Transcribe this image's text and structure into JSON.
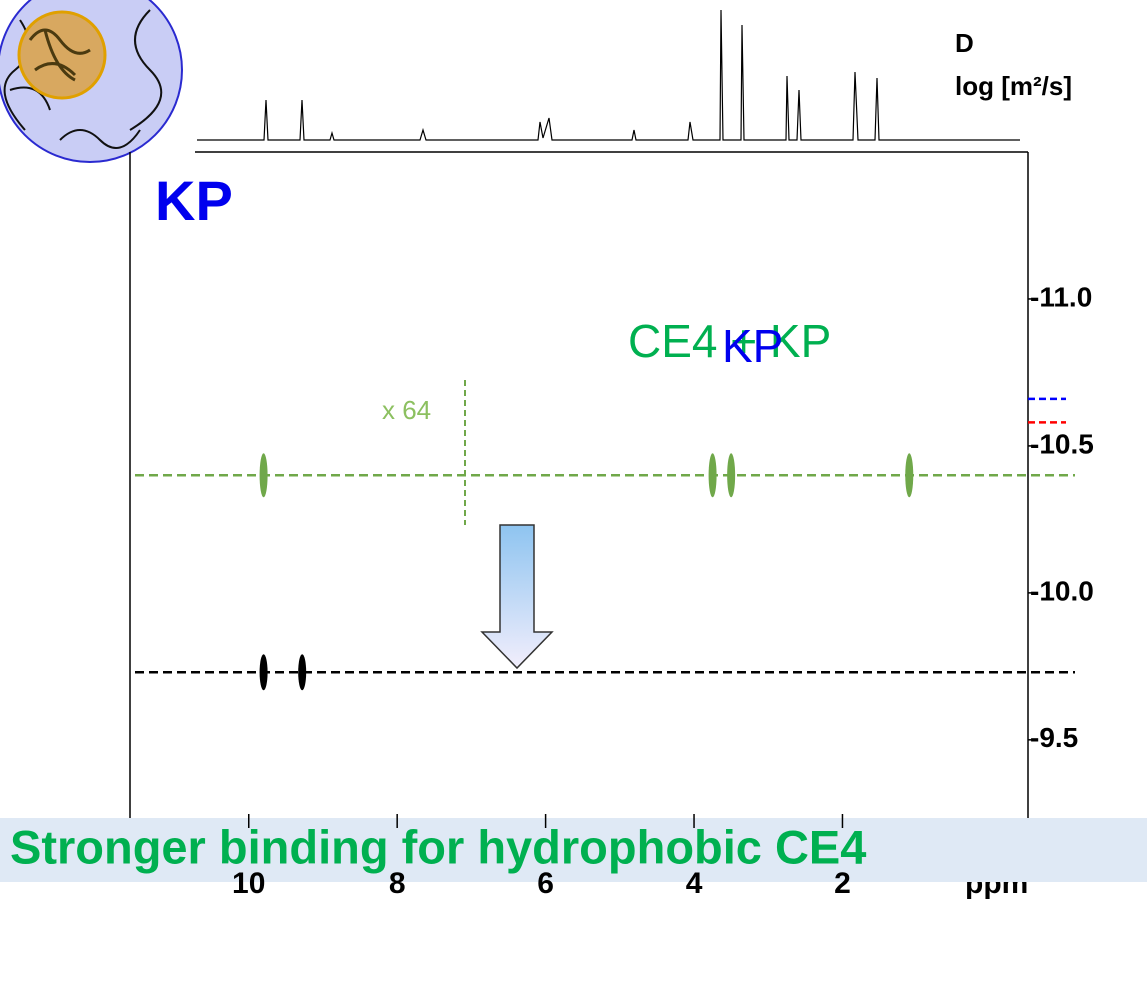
{
  "chart_data": {
    "type": "dosy",
    "title": "KP",
    "y_axis_label": "D",
    "y_axis_unit": "log [m²/s]",
    "x_axis_label": "ppm",
    "annotations": {
      "complex": "CE4 + KP",
      "overlay": "KP",
      "scale": "x 64",
      "banner": "Stronger binding for hydrophobic CE4"
    },
    "xlim": [
      11.6,
      -0.5
    ],
    "xticks": [
      10,
      8,
      6,
      4,
      2
    ],
    "ylim": [
      -9.2,
      -11.5
    ],
    "yticks": [
      {
        "value": -11.0,
        "label": "-11.0"
      },
      {
        "value": -10.5,
        "label": "-10.5"
      },
      {
        "value": -10.0,
        "label": "-10.0"
      },
      {
        "value": -9.5,
        "label": "-9.5"
      }
    ],
    "series": [
      {
        "name": "CE4 + KP",
        "color": "#70a84a",
        "D": -10.4,
        "peaks": [
          9.8,
          3.75,
          3.5,
          1.1
        ]
      },
      {
        "color": "#000000",
        "D": -9.73,
        "peaks": [
          9.8,
          9.28
        ]
      }
    ],
    "markers": [
      {
        "color": "#0000ff",
        "value": -10.66
      },
      {
        "color": "#ff0000",
        "value": -10.58
      }
    ]
  }
}
